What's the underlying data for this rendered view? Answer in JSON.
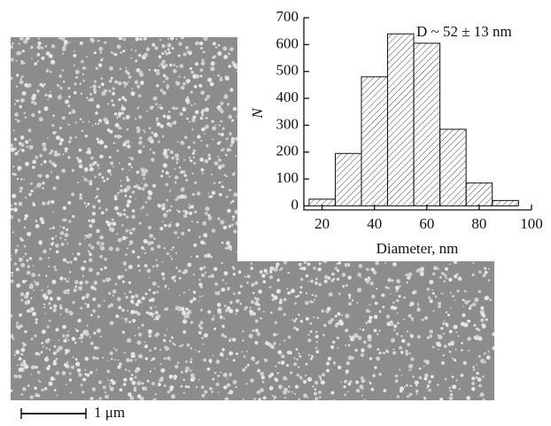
{
  "chart_data": {
    "type": "histogram",
    "annotation": "D ~ 52 ± 13 nm",
    "xlabel": "Diameter, nm",
    "ylabel": "N",
    "bins": [
      15,
      25,
      35,
      45,
      55,
      65,
      75,
      85,
      95
    ],
    "values": [
      25,
      195,
      480,
      640,
      605,
      285,
      85,
      20
    ],
    "xlim": [
      13,
      100
    ],
    "ylim": [
      -15,
      700
    ],
    "xticks": [
      20,
      40,
      60,
      80,
      100
    ],
    "yticks": [
      0,
      100,
      200,
      300,
      400,
      500,
      600,
      700
    ]
  },
  "scale_bar": {
    "label": "1 μm"
  }
}
